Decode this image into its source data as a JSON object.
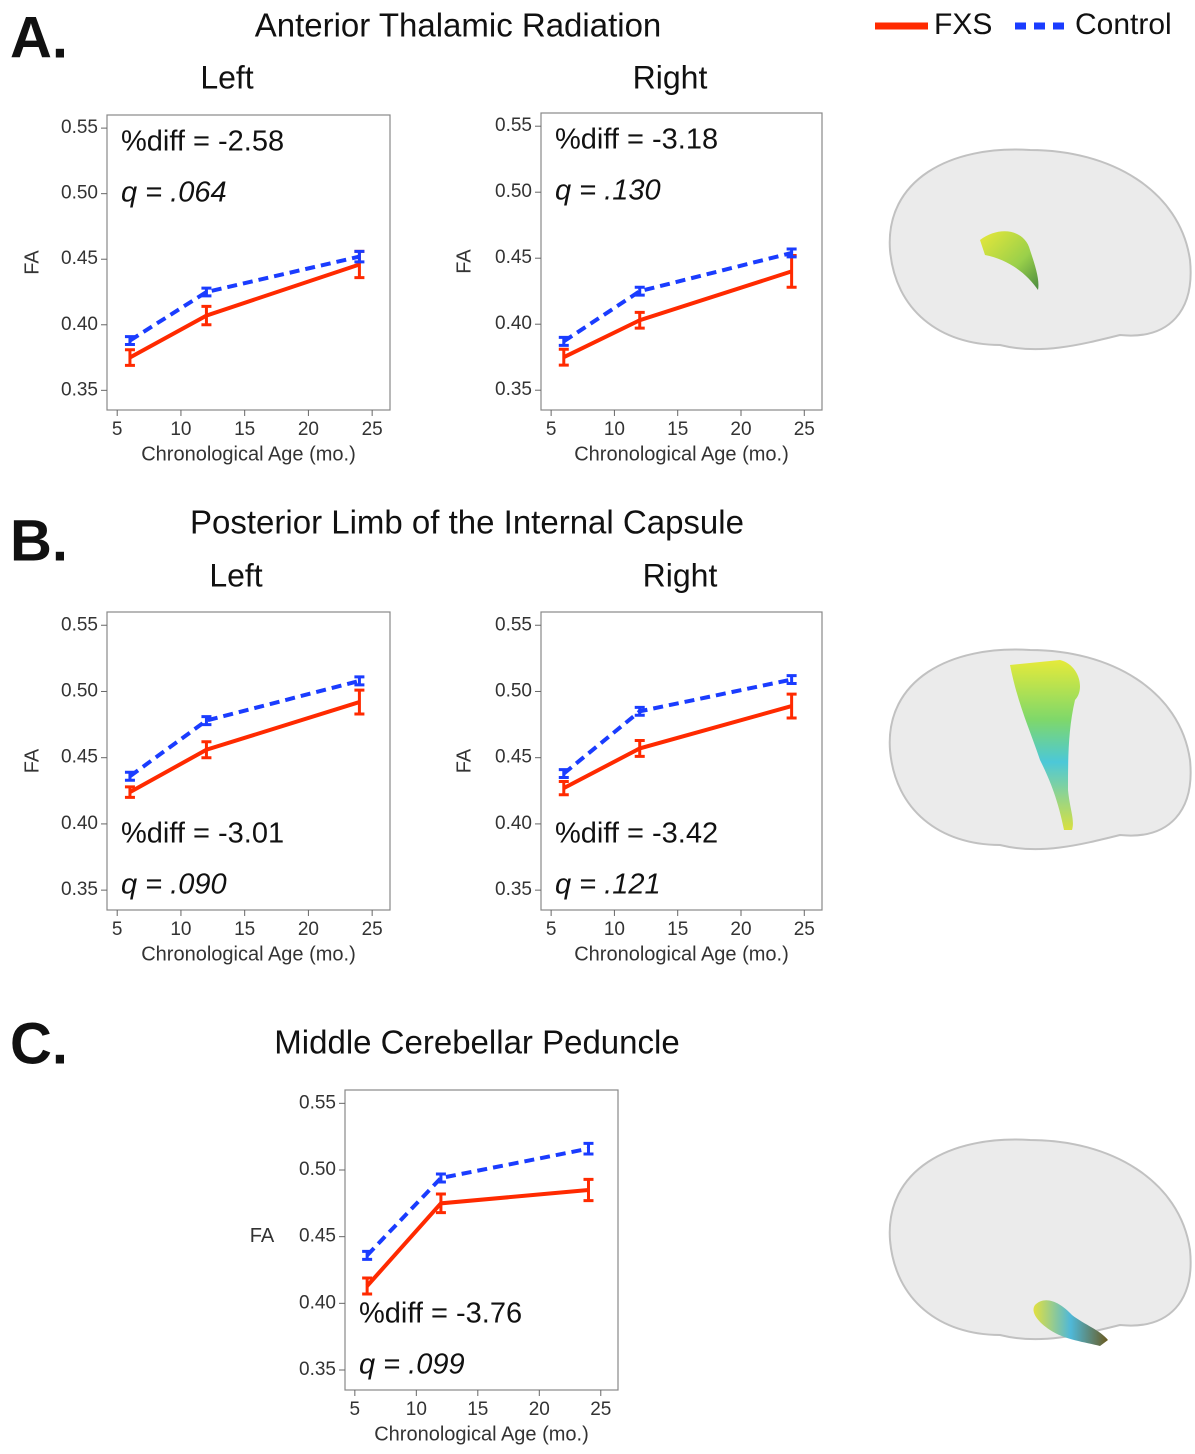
{
  "panels": [
    {
      "label": "A.",
      "title": "Anterior Thalamic Radiation"
    },
    {
      "label": "B.",
      "title": "Posterior Limb of the Internal Capsule"
    },
    {
      "label": "C.",
      "title": "Middle Cerebellar Peduncle"
    }
  ],
  "chart_data": [
    {
      "type": "line",
      "title": "Left",
      "xlabel": "Chronological Age (mo.)",
      "ylabel": "FA",
      "annotations": [
        "%diff = -2.58",
        "q = .064"
      ],
      "x": [
        6,
        12,
        24
      ],
      "xlim": [
        4.2,
        26.4
      ],
      "xticks": [
        5,
        10,
        15,
        20,
        25
      ],
      "ylim": [
        0.335,
        0.56
      ],
      "yticks": [
        0.35,
        {
          "value": 0.4,
          "label": "0.40"
        },
        0.45,
        {
          "value": 0.5,
          "label": "0.50"
        },
        0.55
      ],
      "series": [
        {
          "name": "FXS",
          "color": "#ff2a00",
          "values": [
            0.375,
            0.407,
            0.446
          ],
          "errors": [
            0.006,
            0.007,
            0.01
          ]
        },
        {
          "name": "Control",
          "color": "#1a3cff",
          "values": [
            0.388,
            0.425,
            0.452
          ],
          "errors": [
            0.003,
            0.003,
            0.004
          ]
        }
      ]
    },
    {
      "type": "line",
      "title": "Right",
      "xlabel": "Chronological Age (mo.)",
      "ylabel": "FA",
      "annotations": [
        "%diff = -3.18",
        "q = .130"
      ],
      "x": [
        6,
        12,
        24
      ],
      "xlim": [
        4.2,
        26.4
      ],
      "xticks": [
        5,
        10,
        15,
        20,
        25
      ],
      "ylim": [
        0.335,
        0.56
      ],
      "yticks": [
        0.35,
        {
          "value": 0.4,
          "label": "0.40"
        },
        0.45,
        {
          "value": 0.5,
          "label": "0.50"
        },
        0.55
      ],
      "series": [
        {
          "name": "FXS",
          "color": "#ff2a00",
          "values": [
            0.375,
            0.403,
            0.44
          ],
          "errors": [
            0.006,
            0.006,
            0.012
          ]
        },
        {
          "name": "Control",
          "color": "#1a3cff",
          "values": [
            0.387,
            0.425,
            0.454
          ],
          "errors": [
            0.003,
            0.003,
            0.003
          ]
        }
      ]
    },
    {
      "type": "line",
      "title": "Left",
      "xlabel": "Chronological Age (mo.)",
      "ylabel": "FA",
      "annotations": [
        "%diff = -3.01",
        "q = .090"
      ],
      "x": [
        6,
        12,
        24
      ],
      "xlim": [
        4.2,
        26.4
      ],
      "xticks": [
        5,
        10,
        15,
        20,
        25
      ],
      "ylim": [
        0.335,
        0.56
      ],
      "yticks": [
        0.35,
        {
          "value": 0.4,
          "label": "0.40"
        },
        0.45,
        {
          "value": 0.5,
          "label": "0.50"
        },
        0.55
      ],
      "series": [
        {
          "name": "FXS",
          "color": "#ff2a00",
          "values": [
            0.424,
            0.456,
            0.492
          ],
          "errors": [
            0.004,
            0.006,
            0.009
          ]
        },
        {
          "name": "Control",
          "color": "#1a3cff",
          "values": [
            0.436,
            0.478,
            0.508
          ],
          "errors": [
            0.003,
            0.003,
            0.003
          ]
        }
      ]
    },
    {
      "type": "line",
      "title": "Right",
      "xlabel": "Chronological Age (mo.)",
      "ylabel": "FA",
      "annotations": [
        "%diff = -3.42",
        "q = .121"
      ],
      "x": [
        6,
        12,
        24
      ],
      "xlim": [
        4.2,
        26.4
      ],
      "xticks": [
        5,
        10,
        15,
        20,
        25
      ],
      "ylim": [
        0.335,
        0.56
      ],
      "yticks": [
        0.35,
        {
          "value": 0.4,
          "label": "0.40"
        },
        0.45,
        {
          "value": 0.5,
          "label": "0.50"
        },
        0.55
      ],
      "series": [
        {
          "name": "FXS",
          "color": "#ff2a00",
          "values": [
            0.427,
            0.457,
            0.489
          ],
          "errors": [
            0.005,
            0.006,
            0.009
          ]
        },
        {
          "name": "Control",
          "color": "#1a3cff",
          "values": [
            0.438,
            0.485,
            0.509
          ],
          "errors": [
            0.003,
            0.003,
            0.003
          ]
        }
      ]
    },
    {
      "type": "line",
      "xlabel": "Chronological Age (mo.)",
      "ylabel": "FA",
      "annotations": [
        "%diff = -3.76",
        "q = .099"
      ],
      "x": [
        6,
        12,
        24
      ],
      "xlim": [
        4.2,
        26.4
      ],
      "xticks": [
        5,
        10,
        15,
        20,
        25
      ],
      "ylim": [
        0.335,
        0.56
      ],
      "yticks": [
        0.35,
        {
          "value": 0.4,
          "label": "0.40"
        },
        0.45,
        {
          "value": 0.5,
          "label": "0.50"
        },
        0.55
      ],
      "series": [
        {
          "name": "FXS",
          "color": "#ff2a00",
          "values": [
            0.413,
            0.475,
            0.485
          ],
          "errors": [
            0.006,
            0.007,
            0.008
          ]
        },
        {
          "name": "Control",
          "color": "#1a3cff",
          "values": [
            0.436,
            0.494,
            0.516
          ],
          "errors": [
            0.003,
            0.003,
            0.004
          ]
        }
      ]
    }
  ]
}
